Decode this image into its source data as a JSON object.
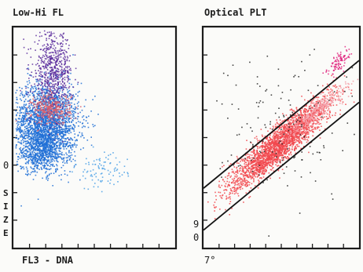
{
  "chart_data": [
    {
      "type": "scatter",
      "title": "Low-Hi FL",
      "xlabel": "FL3 - DNA",
      "ylabel": "SIZE",
      "ytick_labels": [
        {
          "value": 0.5,
          "label": "0"
        }
      ],
      "xlim": [
        0,
        1
      ],
      "ylim": [
        0,
        1
      ],
      "grid": false,
      "colors": {
        "blue": "#1f6fd6",
        "purple": "#5b2b9c",
        "pink": "#d9636f",
        "light_blue": "#4aa0e6"
      },
      "series": [
        {
          "cluster": "blue",
          "center": [
            0.2,
            0.57
          ],
          "spread": [
            0.1,
            0.09
          ],
          "count": 2200
        },
        {
          "cluster": "blue",
          "center": [
            0.17,
            0.44
          ],
          "spread": [
            0.08,
            0.05
          ],
          "count": 600
        },
        {
          "cluster": "purple",
          "center": [
            0.24,
            0.8
          ],
          "spread": [
            0.06,
            0.09
          ],
          "count": 650
        },
        {
          "cluster": "pink",
          "center": [
            0.23,
            0.63
          ],
          "spread": [
            0.06,
            0.035
          ],
          "count": 350
        },
        {
          "cluster": "light_blue",
          "center": [
            0.54,
            0.35
          ],
          "spread": [
            0.08,
            0.04
          ],
          "count": 90
        }
      ]
    },
    {
      "type": "scatter",
      "title": "Optical PLT",
      "xlabel": "7°",
      "ylabel": "9 0",
      "xlim": [
        0,
        1
      ],
      "ylim": [
        0,
        1
      ],
      "grid": false,
      "colors": {
        "red": "#f2484e",
        "pink": "#f39aa5",
        "black": "#262626",
        "magenta": "#e0247f"
      },
      "boundary_lines": [
        {
          "from": [
            0,
            0.27
          ],
          "to": [
            1,
            0.85
          ]
        },
        {
          "from": [
            0,
            0.08
          ],
          "to": [
            1,
            0.66
          ]
        }
      ],
      "series": [
        {
          "cluster": "red",
          "center": [
            0.48,
            0.47
          ],
          "spread": [
            0.16,
            0.1
          ],
          "count": 2500
        },
        {
          "cluster": "pink",
          "center": [
            0.72,
            0.62
          ],
          "spread": [
            0.1,
            0.05
          ],
          "count": 320
        },
        {
          "cluster": "magenta",
          "center": [
            0.86,
            0.84
          ],
          "spread": [
            0.04,
            0.05
          ],
          "count": 90
        },
        {
          "cluster": "black",
          "center": [
            0.5,
            0.55
          ],
          "spread": [
            0.22,
            0.16
          ],
          "count": 150
        }
      ]
    }
  ]
}
